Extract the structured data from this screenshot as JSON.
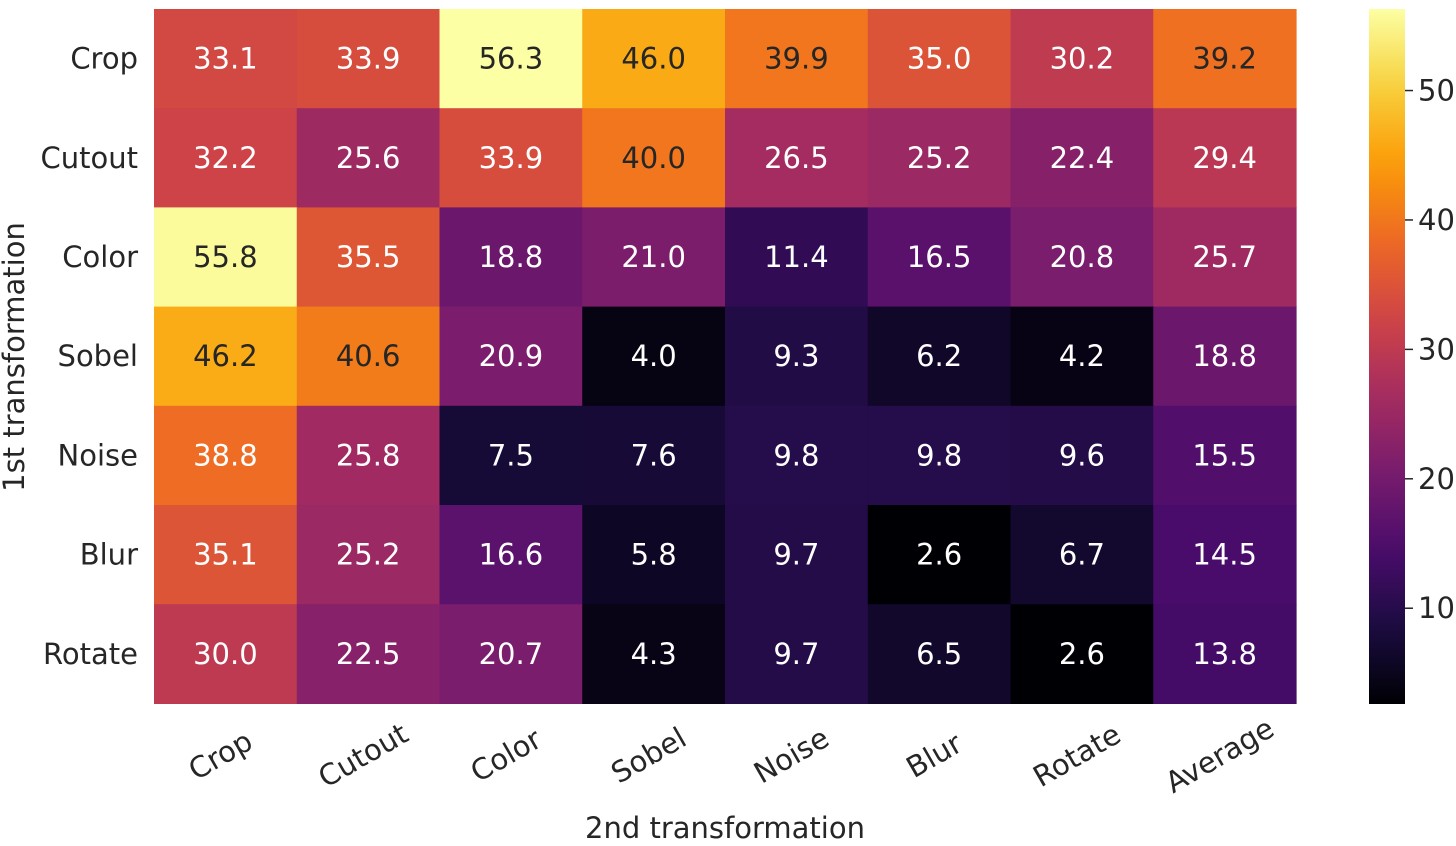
{
  "chart_data": {
    "type": "heatmap",
    "title": "",
    "xlabel": "2nd transformation",
    "ylabel": "1st transformation",
    "x_categories": [
      "Crop",
      "Cutout",
      "Color",
      "Sobel",
      "Noise",
      "Blur",
      "Rotate",
      "Average"
    ],
    "y_categories": [
      "Crop",
      "Cutout",
      "Color",
      "Sobel",
      "Noise",
      "Blur",
      "Rotate"
    ],
    "values": [
      [
        33.1,
        33.9,
        56.3,
        46.0,
        39.9,
        35.0,
        30.2,
        39.2
      ],
      [
        32.2,
        25.6,
        33.9,
        40.0,
        26.5,
        25.2,
        22.4,
        29.4
      ],
      [
        55.8,
        35.5,
        18.8,
        21.0,
        11.4,
        16.5,
        20.8,
        25.7
      ],
      [
        46.2,
        40.6,
        20.9,
        4.0,
        9.3,
        6.2,
        4.2,
        18.8
      ],
      [
        38.8,
        25.8,
        7.5,
        7.6,
        9.8,
        9.8,
        9.6,
        15.5
      ],
      [
        35.1,
        25.2,
        16.6,
        5.8,
        9.7,
        2.6,
        6.7,
        14.5
      ],
      [
        30.0,
        22.5,
        20.7,
        4.3,
        9.7,
        6.5,
        2.6,
        13.8
      ]
    ],
    "value_format": "0.1f",
    "colormap": "inferno",
    "vmin": 2.6,
    "vmax": 56.3,
    "colorbar_ticks": [
      10,
      20,
      30,
      40,
      50
    ],
    "colorbar_tick_labels": [
      "10",
      "20",
      "30",
      "40",
      "50"
    ],
    "x_tick_rotation_deg": -30,
    "grid": false,
    "legend": "colorbar-right"
  },
  "colors": {
    "background": "#ffffff",
    "axis_text": "#262626",
    "annotation_light": "#ffffff",
    "annotation_dark": "#262626",
    "colormap_stops": [
      "#000004",
      "#1b0c41",
      "#4a0c6b",
      "#781c6d",
      "#a52c60",
      "#cf4446",
      "#ed6925",
      "#fb9b06",
      "#f7d13d",
      "#fcffa4"
    ]
  }
}
